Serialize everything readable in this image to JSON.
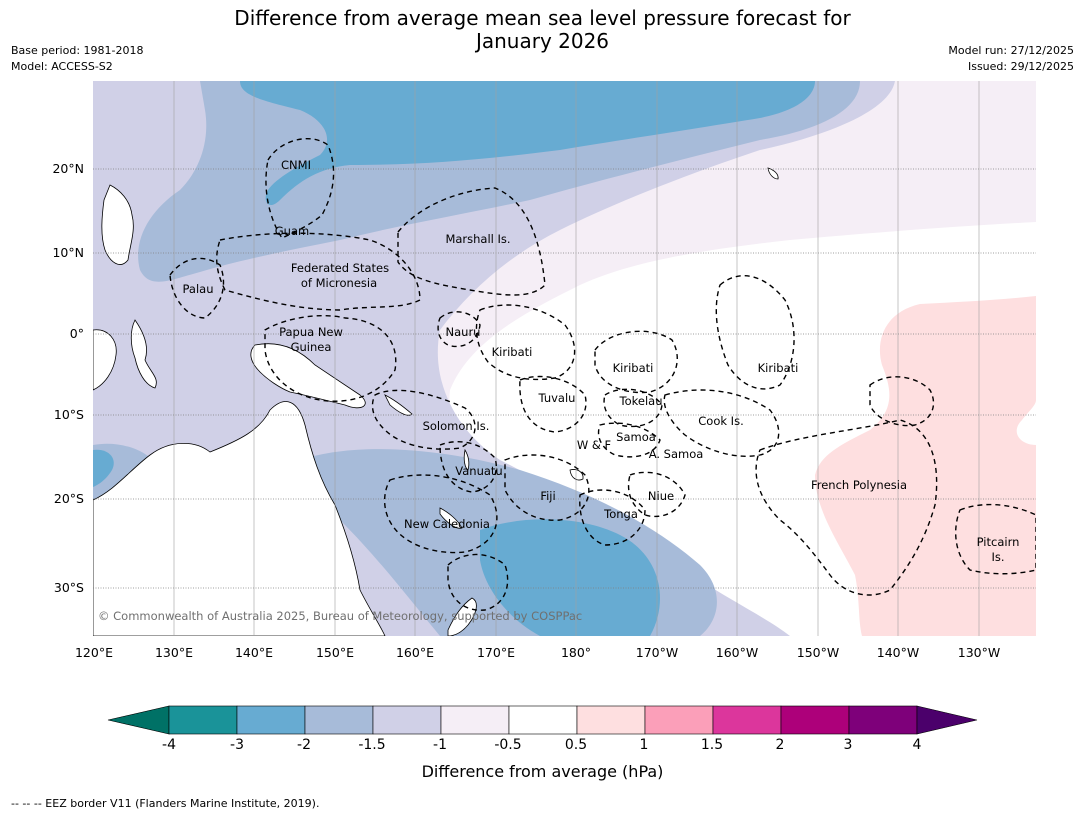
{
  "title_line1": "Difference from average mean sea level pressure forecast for",
  "title_line2": "January 2026",
  "base_period": "Base period: 1981-2018",
  "model": "Model: ACCESS-S2",
  "model_run": "Model run: 27/12/2025",
  "issued": "Issued: 29/12/2025",
  "lon_ticks": [
    "120°E",
    "130°E",
    "140°E",
    "150°E",
    "160°E",
    "170°E",
    "180°",
    "170°W",
    "160°W",
    "150°W",
    "140°W",
    "130°W"
  ],
  "lat_ticks": [
    "20°N",
    "10°N",
    "0°",
    "10°S",
    "20°S",
    "30°S"
  ],
  "regions": [
    {
      "name": "cnmi",
      "label": "CNMI"
    },
    {
      "name": "guam",
      "label": "Guam"
    },
    {
      "name": "marshall-islands",
      "label": "Marshall Is."
    },
    {
      "name": "federated-states-of-micronesia",
      "label": "Federated States"
    },
    {
      "name": "federated-states-of-micronesia-2",
      "label": "of Micronesia"
    },
    {
      "name": "palau",
      "label": "Palau"
    },
    {
      "name": "papua-new-guinea",
      "label": "Papua New"
    },
    {
      "name": "papua-new-guinea-2",
      "label": "Guinea"
    },
    {
      "name": "nauru",
      "label": "Nauru"
    },
    {
      "name": "kiribati-west",
      "label": "Kiribati"
    },
    {
      "name": "kiribati-central",
      "label": "Kiribati"
    },
    {
      "name": "kiribati-east",
      "label": "Kiribati"
    },
    {
      "name": "tuvalu",
      "label": "Tuvalu"
    },
    {
      "name": "tokelau",
      "label": "Tokelau"
    },
    {
      "name": "cook-islands",
      "label": "Cook Is."
    },
    {
      "name": "solomon-islands",
      "label": "Solomon Is."
    },
    {
      "name": "samoa",
      "label": "Samoa"
    },
    {
      "name": "wallis-futuna",
      "label": "W & F"
    },
    {
      "name": "american-samoa",
      "label": "A. Samoa"
    },
    {
      "name": "vanuatu",
      "label": "Vanuatu"
    },
    {
      "name": "fiji",
      "label": "Fiji"
    },
    {
      "name": "niue",
      "label": "Niue"
    },
    {
      "name": "french-polynesia",
      "label": "French Polynesia"
    },
    {
      "name": "tonga",
      "label": "Tonga"
    },
    {
      "name": "new-caledonia",
      "label": "New Caledonia"
    },
    {
      "name": "pitcairn",
      "label": "Pitcairn"
    },
    {
      "name": "pitcairn-2",
      "label": "Is."
    }
  ],
  "copyright": "© Commonwealth of Australia 2025, Bureau of Meteorology, supported by COSPPac",
  "colorbar": {
    "label": "Difference from average (hPa)",
    "ticks": [
      "-4",
      "-3",
      "-2",
      "-1.5",
      "-1",
      "-0.5",
      "0.5",
      "1",
      "1.5",
      "2",
      "3",
      "4"
    ],
    "colors": [
      "#1a9399",
      "#67abd2",
      "#a7bbd9",
      "#d0d0e7",
      "#f5eef6",
      "#ffffff",
      "#fedfe0",
      "#fb9fb9",
      "#dc369c",
      "#ad007a",
      "#7e007a"
    ],
    "under_color": "#007166",
    "over_color": "#4b006b"
  },
  "footer": "--  --  -- EEZ border V11 (Flanders Marine Institute, 2019)."
}
